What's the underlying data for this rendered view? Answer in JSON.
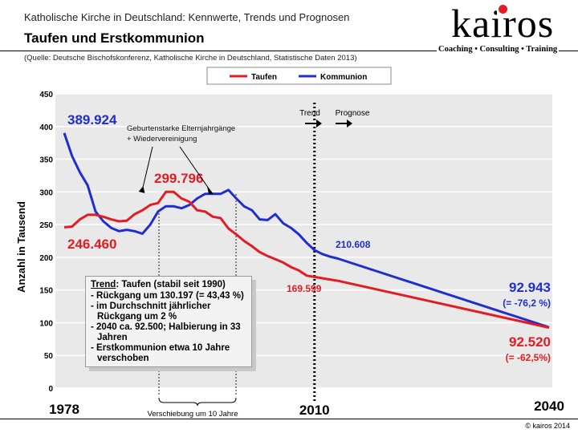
{
  "header": {
    "subtitle": "Katholische Kirche in Deutschland: Kennwerte, Trends und Prognosen",
    "title": "Taufen und Erstkommunion",
    "source": "(Quelle: Deutsche Bischofskonferenz, Katholische Kirche in Deutschland, Statistische Daten 2013)"
  },
  "logo": {
    "wordmark": "kairos",
    "tagline": "Coaching • Consulting • Training"
  },
  "footer": {
    "copyright": "© kairos 2014"
  },
  "colors": {
    "taufen": "#e31b23",
    "kommunion": "#1f2fcf",
    "plot_bg": "#e9e9e9",
    "grid": "#ffffff"
  },
  "chart_data": {
    "type": "line",
    "xlim": [
      1978,
      2040
    ],
    "ylim": [
      0,
      450
    ],
    "ylabel": "Anzahl in Tausend",
    "yticks": [
      "0",
      "50",
      "100",
      "150",
      "200",
      "250",
      "300",
      "350",
      "400",
      "450"
    ],
    "xtick_labels": [
      "1978",
      "2010",
      "2040"
    ],
    "grid": true,
    "legend": {
      "position": "top",
      "items": [
        "Taufen",
        "Kommunion"
      ]
    },
    "series": [
      {
        "name": "Taufen",
        "color": "#e31b23",
        "x": [
          1978,
          1979,
          1980,
          1981,
          1982,
          1983,
          1984,
          1985,
          1986,
          1987,
          1988,
          1989,
          1990,
          1991,
          1992,
          1993,
          1994,
          1995,
          1996,
          1997,
          1998,
          1999,
          2000,
          2001,
          2002,
          2003,
          2004,
          2005,
          2006,
          2007,
          2008,
          2009,
          2010,
          2011,
          2012,
          2013,
          2040
        ],
        "y": [
          246,
          247,
          258,
          265,
          265,
          262,
          258,
          255,
          256,
          266,
          272,
          280,
          283,
          300,
          300,
          290,
          285,
          272,
          270,
          262,
          260,
          244,
          235,
          225,
          217,
          208,
          202,
          197,
          192,
          185,
          180,
          172,
          170,
          168,
          166,
          164,
          92.5
        ]
      },
      {
        "name": "Kommunion",
        "color": "#1f2fcf",
        "x": [
          1978,
          1979,
          1980,
          1981,
          1982,
          1983,
          1984,
          1985,
          1986,
          1987,
          1988,
          1989,
          1990,
          1991,
          1992,
          1993,
          1994,
          1995,
          1996,
          1997,
          1998,
          1999,
          2000,
          2001,
          2002,
          2003,
          2004,
          2005,
          2006,
          2007,
          2008,
          2009,
          2010,
          2011,
          2012,
          2013,
          2040
        ],
        "y": [
          390,
          355,
          330,
          310,
          270,
          255,
          245,
          240,
          242,
          240,
          236,
          250,
          270,
          278,
          278,
          275,
          280,
          290,
          297,
          297,
          297,
          303,
          290,
          278,
          272,
          258,
          257,
          266,
          252,
          245,
          235,
          222,
          211,
          205,
          201,
          198,
          92.9
        ]
      }
    ],
    "annotations": {
      "kommunion_start": "389.924",
      "taufen_start": "246.460",
      "taufen_peak": "299.796",
      "kommunion_2010": "210.608",
      "taufen_2010": "169.599",
      "kommunion_2040": "92.943",
      "kommunion_2040_change": "(= -76,2 %)",
      "taufen_2040": "92.520",
      "taufen_2040_change": "(= -62,5%)",
      "geburtenstark": [
        "Geburtenstarke Elternjahrgänge",
        "+ Wiedervereinigung"
      ],
      "trend": "Trend",
      "prognose": "Prognose",
      "verschiebung": "Verschiebung um 10 Jahre"
    },
    "trend_box": {
      "heading_prefix": "Trend",
      "heading_rest": ": Taufen (stabil seit 1990)",
      "items": [
        "- Rückgang um 130.197 (= 43,43 %)",
        "- im Durchschnitt jährlicher Rückgang um 2 %",
        "- 2040 ca. 92.500; Halbierung in 33 Jahren",
        "- Erstkommunion etwa 10 Jahre verschoben"
      ]
    }
  }
}
